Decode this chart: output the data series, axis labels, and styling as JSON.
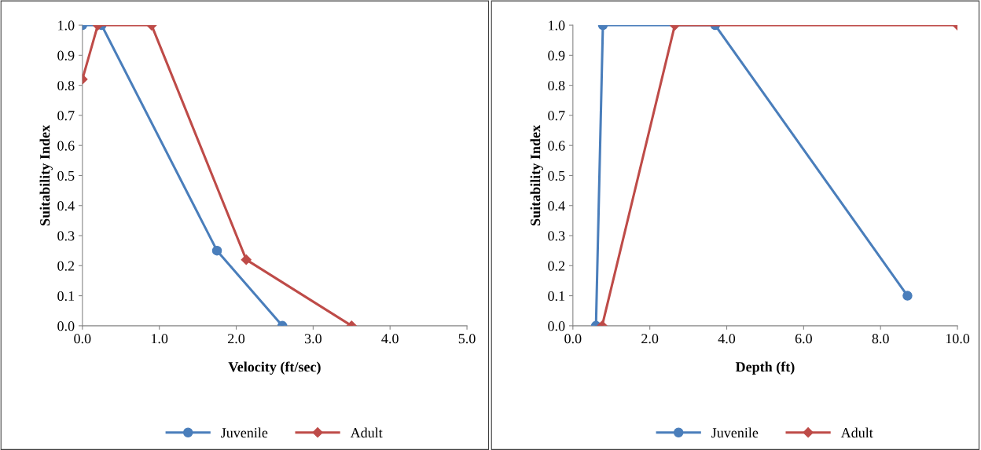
{
  "chart_data": [
    {
      "type": "line",
      "xlabel": "Velocity (ft/sec)",
      "ylabel": "Suitability Index",
      "xlim": [
        0,
        5
      ],
      "xticks": [
        {
          "value": 0,
          "label": "0.0"
        },
        {
          "value": 1,
          "label": "1.0"
        },
        {
          "value": 2,
          "label": "2.0"
        },
        {
          "value": 3,
          "label": "3.0"
        },
        {
          "value": 4,
          "label": "4.0"
        },
        {
          "value": 5,
          "label": "5.0"
        }
      ],
      "ylim": [
        0,
        1
      ],
      "yticks": [
        {
          "value": 0,
          "label": "0.0"
        },
        {
          "value": 0.1,
          "label": "0.1"
        },
        {
          "value": 0.2,
          "label": "0.2"
        },
        {
          "value": 0.3,
          "label": "0.3"
        },
        {
          "value": 0.4,
          "label": "0.4"
        },
        {
          "value": 0.5,
          "label": "0.5"
        },
        {
          "value": 0.6,
          "label": "0.6"
        },
        {
          "value": 0.7,
          "label": "0.7"
        },
        {
          "value": 0.8,
          "label": "0.8"
        },
        {
          "value": 0.9,
          "label": "0.9"
        },
        {
          "value": 1,
          "label": "1.0"
        }
      ],
      "grid": false,
      "legend": "bottom",
      "series": [
        {
          "name": "Juvenile",
          "color": "#4a7ebb",
          "marker": "circle",
          "x": [
            0,
            0.25,
            1.75,
            2.6
          ],
          "values": [
            1.0,
            1.0,
            0.25,
            0.0
          ]
        },
        {
          "name": "Adult",
          "color": "#be4b48",
          "marker": "diamond",
          "x": [
            0,
            0.2,
            0.9,
            2.13,
            3.5
          ],
          "values": [
            0.82,
            1.0,
            1.0,
            0.22,
            0.0
          ]
        }
      ]
    },
    {
      "type": "line",
      "xlabel": "Depth (ft)",
      "ylabel": "Suitability Index",
      "xlim": [
        0,
        10
      ],
      "xticks": [
        {
          "value": 0,
          "label": "0.0"
        },
        {
          "value": 2,
          "label": "2.0"
        },
        {
          "value": 4,
          "label": "4.0"
        },
        {
          "value": 6,
          "label": "6.0"
        },
        {
          "value": 8,
          "label": "8.0"
        },
        {
          "value": 10,
          "label": "10.0"
        }
      ],
      "ylim": [
        0,
        1
      ],
      "yticks": [
        {
          "value": 0,
          "label": "0.0"
        },
        {
          "value": 0.1,
          "label": "0.1"
        },
        {
          "value": 0.2,
          "label": "0.2"
        },
        {
          "value": 0.3,
          "label": "0.3"
        },
        {
          "value": 0.4,
          "label": "0.4"
        },
        {
          "value": 0.5,
          "label": "0.5"
        },
        {
          "value": 0.6,
          "label": "0.6"
        },
        {
          "value": 0.7,
          "label": "0.7"
        },
        {
          "value": 0.8,
          "label": "0.8"
        },
        {
          "value": 0.9,
          "label": "0.9"
        },
        {
          "value": 1,
          "label": "1.0"
        }
      ],
      "grid": false,
      "legend": "bottom",
      "series": [
        {
          "name": "Juvenile",
          "color": "#4a7ebb",
          "marker": "circle",
          "x": [
            0.6,
            0.78,
            3.7,
            8.7
          ],
          "values": [
            0.0,
            1.0,
            1.0,
            0.1
          ]
        },
        {
          "name": "Adult",
          "color": "#be4b48",
          "marker": "diamond",
          "x": [
            0.76,
            2.65,
            10
          ],
          "values": [
            0.0,
            1.0,
            1.0
          ]
        }
      ]
    }
  ]
}
